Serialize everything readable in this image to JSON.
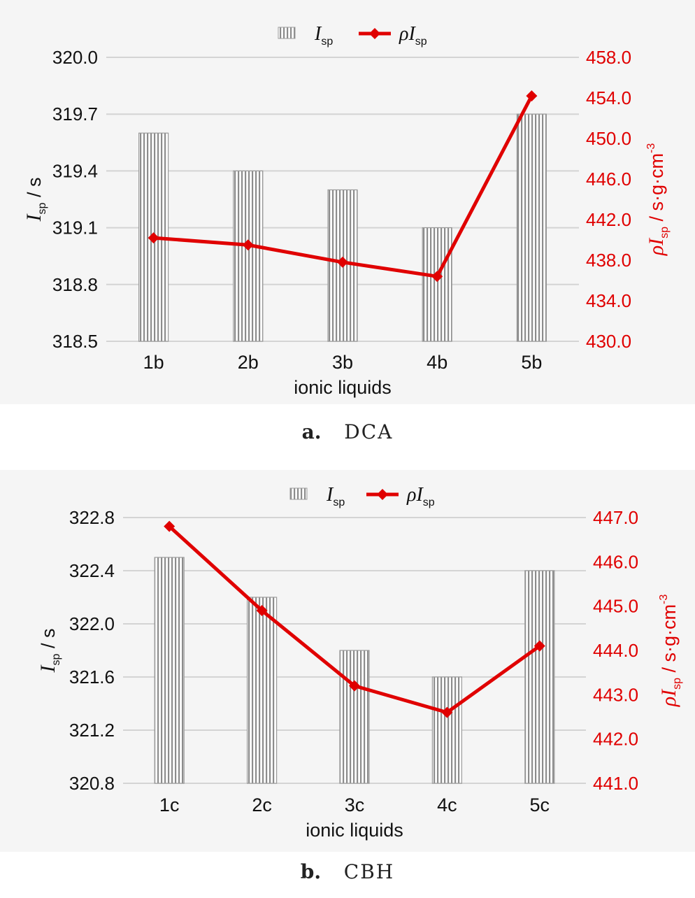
{
  "chart_data": [
    {
      "type": "bar",
      "caption_letter": "a.",
      "caption_text": "DCA",
      "categories": [
        "1b",
        "2b",
        "3b",
        "4b",
        "5b"
      ],
      "xlabel": "ionic liquids",
      "ylabel_main": "I",
      "ylabel_sub": "sp",
      "ylabel_unit": " / s",
      "y2label_main": "ρI",
      "y2label_sub": "sp",
      "y2label_unit": " / s·g·cm",
      "y2label_sup": "-3",
      "ylim": [
        318.5,
        320.0
      ],
      "yticks": [
        "318.5",
        "318.8",
        "319.1",
        "319.4",
        "319.7",
        "320.0"
      ],
      "y2lim": [
        430.0,
        458.0
      ],
      "y2ticks": [
        "430.0",
        "434.0",
        "438.0",
        "442.0",
        "446.0",
        "450.0",
        "454.0",
        "458.0"
      ],
      "grid": true,
      "legend_position": "top-center",
      "series": [
        {
          "name": "I_sp",
          "legend_main": "I",
          "legend_sub": "sp",
          "kind": "bar",
          "axis": "left",
          "color": "#9a9a9a",
          "values": [
            319.6,
            319.4,
            319.3,
            319.1,
            319.7
          ]
        },
        {
          "name": "ρI_sp",
          "legend_main": "ρI",
          "legend_sub": "sp",
          "kind": "line",
          "axis": "right",
          "color": "#e00000",
          "values": [
            440.2,
            439.5,
            437.8,
            436.4,
            454.2
          ]
        }
      ]
    },
    {
      "type": "bar",
      "caption_letter": "b.",
      "caption_text": "CBH",
      "categories": [
        "1c",
        "2c",
        "3c",
        "4c",
        "5c"
      ],
      "xlabel": "ionic liquids",
      "ylabel_main": "I",
      "ylabel_sub": "sp",
      "ylabel_unit": " / s",
      "y2label_main": "ρI",
      "y2label_sub": "sp",
      "y2label_unit": " / s·g·cm",
      "y2label_sup": "-3",
      "ylim": [
        320.8,
        322.8
      ],
      "yticks": [
        "320.8",
        "321.2",
        "321.6",
        "322.0",
        "322.4",
        "322.8"
      ],
      "y2lim": [
        441.0,
        447.0
      ],
      "y2ticks": [
        "441.0",
        "442.0",
        "443.0",
        "444.0",
        "445.0",
        "446.0",
        "447.0"
      ],
      "grid": true,
      "legend_position": "top-center",
      "series": [
        {
          "name": "I_sp",
          "legend_main": "I",
          "legend_sub": "sp",
          "kind": "bar",
          "axis": "left",
          "color": "#9a9a9a",
          "values": [
            322.5,
            322.2,
            321.8,
            321.6,
            322.4
          ]
        },
        {
          "name": "ρI_sp",
          "legend_main": "ρI",
          "legend_sub": "sp",
          "kind": "line",
          "axis": "right",
          "color": "#e00000",
          "values": [
            446.8,
            444.9,
            443.2,
            442.6,
            444.1
          ]
        }
      ]
    }
  ]
}
